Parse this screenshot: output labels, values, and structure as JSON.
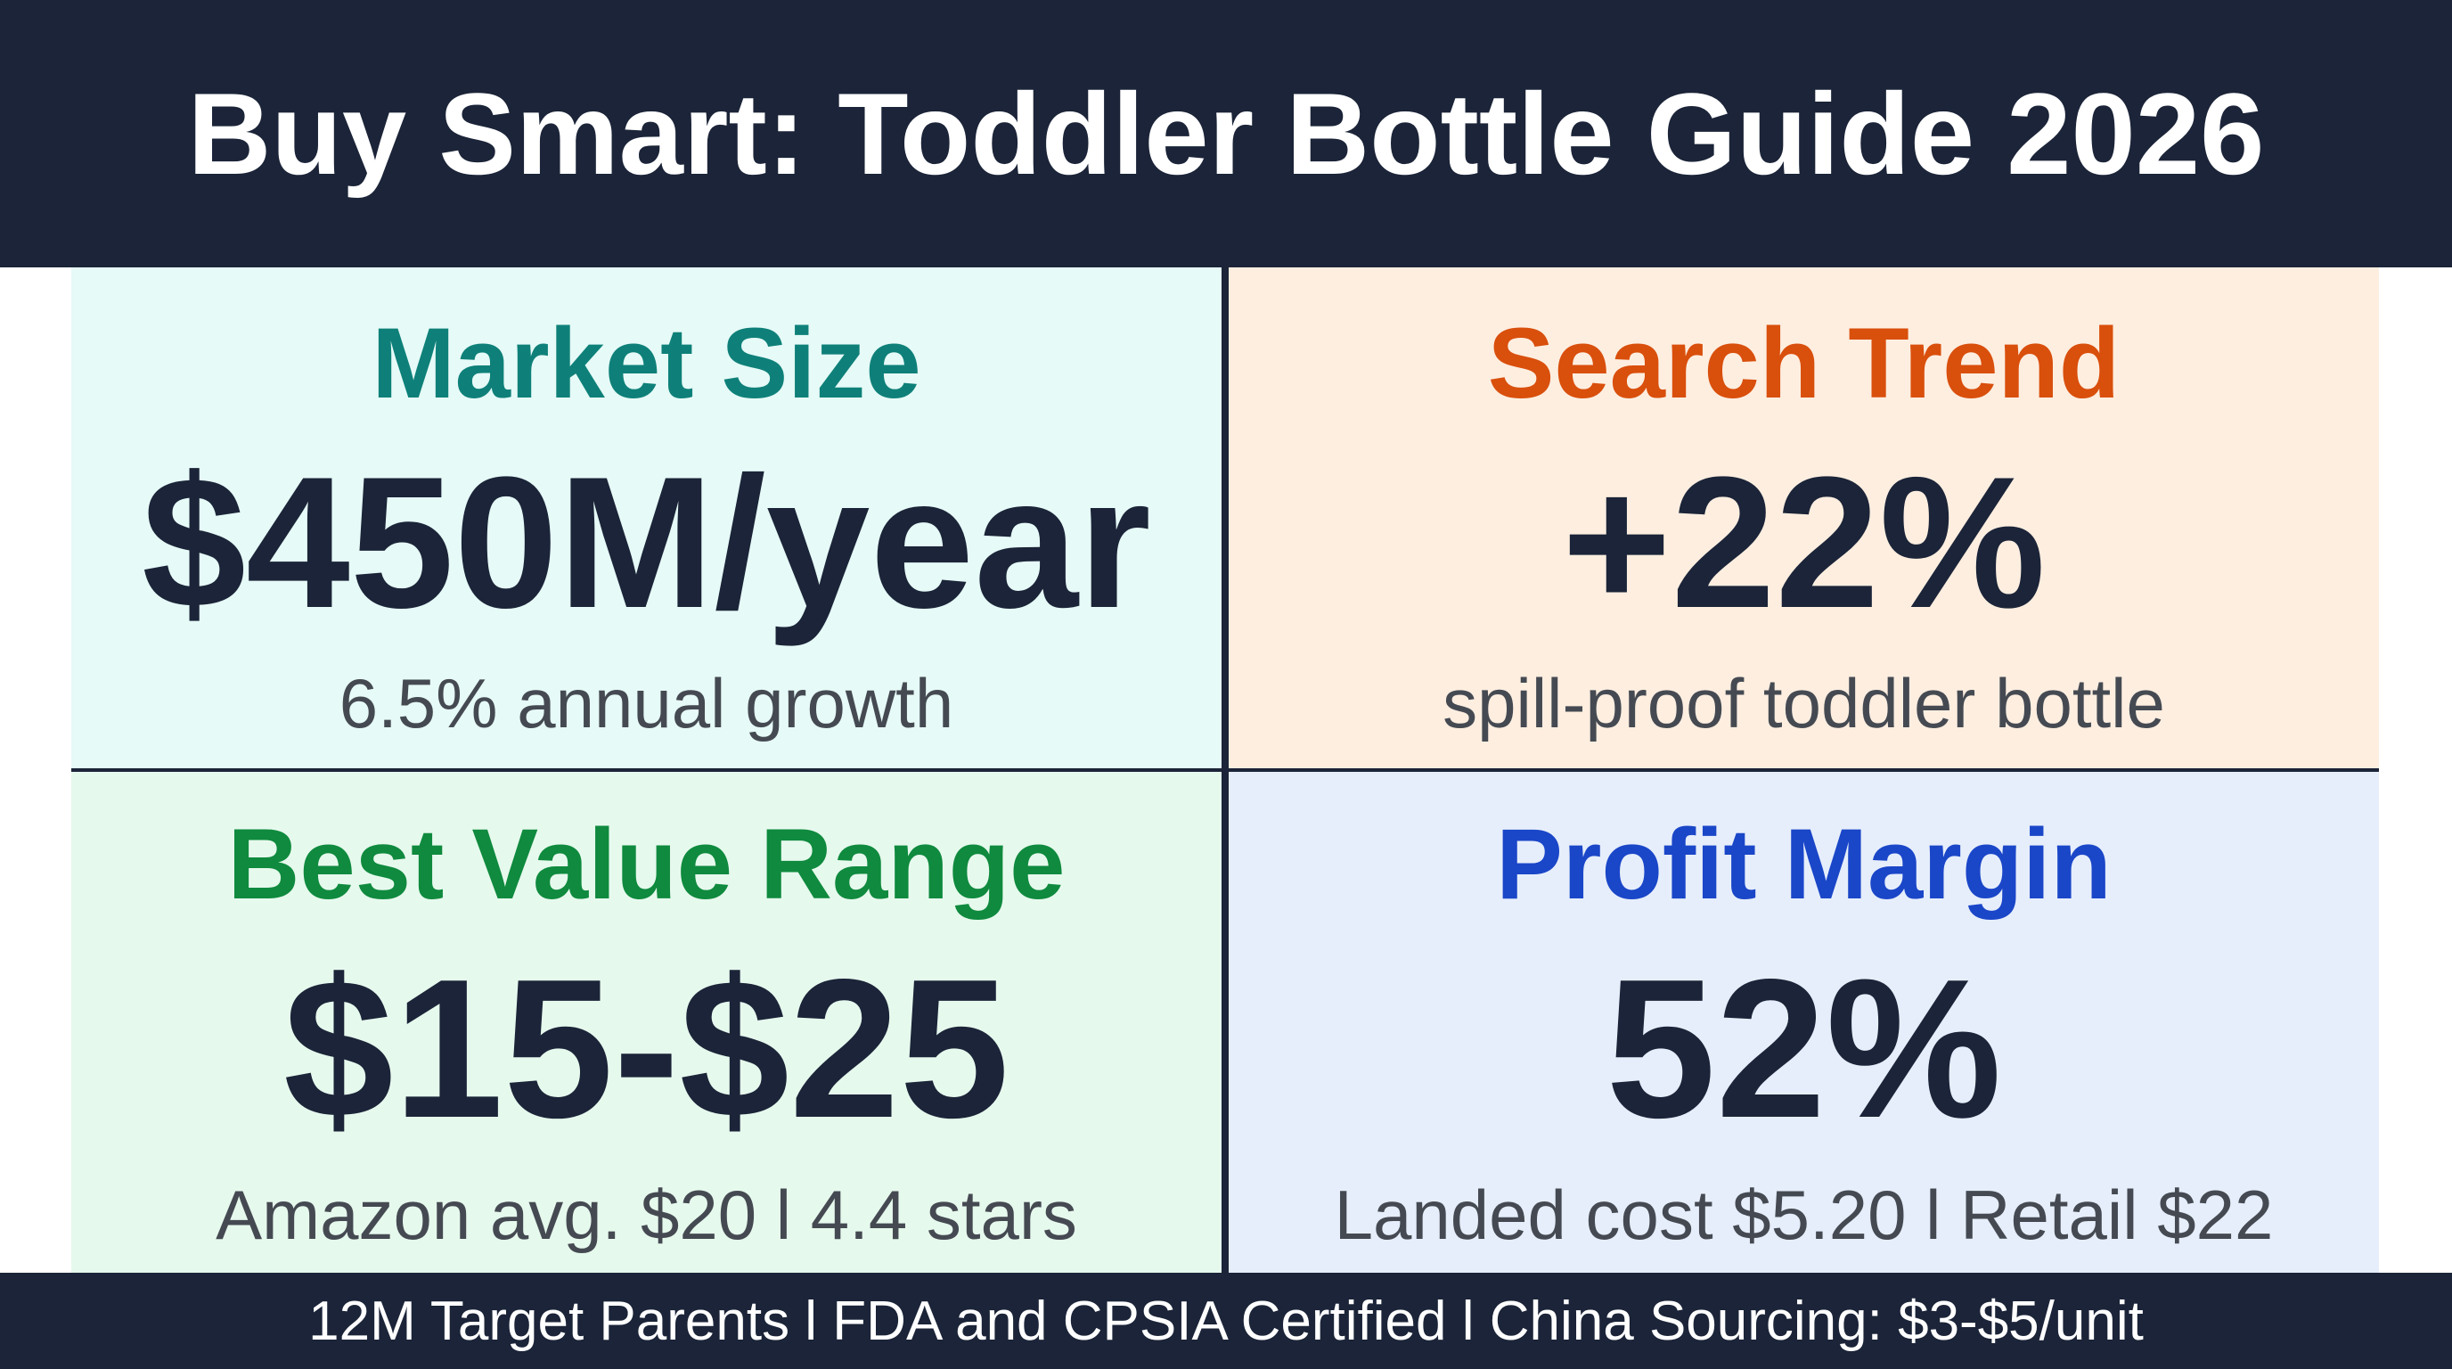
{
  "header": {
    "title": "Buy Smart: Toddler Bottle Guide 2026"
  },
  "cards": [
    {
      "title": "Market Size",
      "value": "$450M/year",
      "subtitle": "6.5% annual growth",
      "title_color": "#0e8079",
      "bg_color": "#e6faf7"
    },
    {
      "title": "Search Trend",
      "value": "+22%",
      "subtitle": "spill-proof toddler bottle",
      "title_color": "#d94f0c",
      "bg_color": "#fdeee0"
    },
    {
      "title": "Best Value Range",
      "value": "$15-$25",
      "subtitle": "Amazon avg. $20 l 4.4 stars",
      "title_color": "#0f8a3e",
      "bg_color": "#e6f9ed"
    },
    {
      "title": "Profit Margin",
      "value": "52%",
      "subtitle": "Landed cost $5.20 l Retail $22",
      "title_color": "#1a46c8",
      "bg_color": "#e6eefb"
    }
  ],
  "footer": {
    "text": "12M Target Parents l FDA and CPSIA Certified l China Sourcing: $3-$5/unit"
  },
  "colors": {
    "dark_navy": "#1b2438",
    "value_text": "#1b2438",
    "subtitle_text": "#454a52"
  }
}
